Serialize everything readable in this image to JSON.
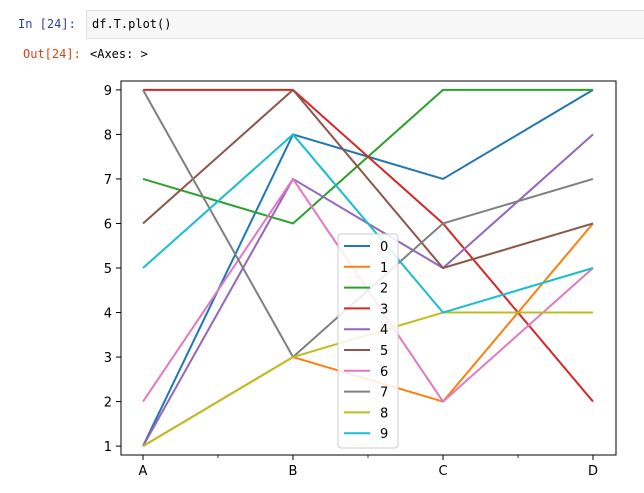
{
  "cell": {
    "in_prompt": "In  [24]:",
    "code": "df.T.plot()",
    "out_prompt": "Out[24]:",
    "output_text": "<Axes: >"
  },
  "chart_data": {
    "type": "line",
    "x": [
      "A",
      "B",
      "C",
      "D"
    ],
    "ylim": [
      0.8,
      9.2
    ],
    "yticks": [
      1,
      2,
      3,
      4,
      5,
      6,
      7,
      8,
      9
    ],
    "legend_position": "center-bottom",
    "series": [
      {
        "name": "0",
        "color": "#1f77b4",
        "values": [
          1,
          8,
          7,
          9
        ]
      },
      {
        "name": "1",
        "color": "#ff7f0e",
        "values": [
          1,
          3,
          2,
          6
        ]
      },
      {
        "name": "2",
        "color": "#2ca02c",
        "values": [
          7,
          6,
          9,
          9
        ]
      },
      {
        "name": "3",
        "color": "#d62728",
        "values": [
          9,
          9,
          6,
          2
        ]
      },
      {
        "name": "4",
        "color": "#9467bd",
        "values": [
          1,
          7,
          5,
          8
        ]
      },
      {
        "name": "5",
        "color": "#8c564b",
        "values": [
          6,
          9,
          5,
          6
        ]
      },
      {
        "name": "6",
        "color": "#e377c2",
        "values": [
          2,
          7,
          2,
          5
        ]
      },
      {
        "name": "7",
        "color": "#7f7f7f",
        "values": [
          9,
          3,
          6,
          7
        ]
      },
      {
        "name": "8",
        "color": "#bcbd22",
        "values": [
          1,
          3,
          4,
          4
        ]
      },
      {
        "name": "9",
        "color": "#17becf",
        "values": [
          5,
          8,
          4,
          5
        ]
      }
    ]
  }
}
